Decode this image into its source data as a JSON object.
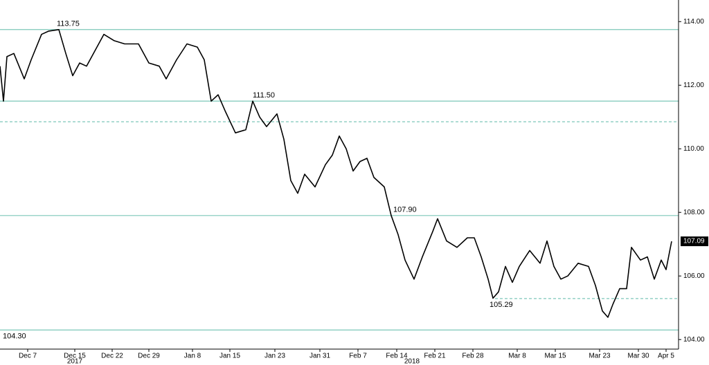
{
  "chart_data": {
    "type": "line",
    "x": [
      0,
      5,
      10,
      20,
      35,
      45,
      60,
      70,
      85,
      95,
      105,
      115,
      125,
      140,
      150,
      165,
      180,
      200,
      215,
      230,
      240,
      255,
      270,
      285,
      295,
      305,
      315,
      325,
      340,
      355,
      365,
      375,
      385,
      400,
      410,
      420,
      430,
      440,
      455,
      470,
      480,
      490,
      500,
      510,
      520,
      530,
      540,
      555,
      565,
      575,
      585,
      598,
      610,
      625,
      632,
      645,
      660,
      675,
      685,
      695,
      705,
      712,
      720,
      730,
      740,
      750,
      765,
      780,
      790,
      800,
      810,
      820,
      835,
      850,
      860,
      870,
      878,
      885,
      895,
      905,
      912,
      925,
      935,
      945,
      955,
      962,
      970
    ],
    "values": [
      112.6,
      111.5,
      112.9,
      113.0,
      112.2,
      112.8,
      113.6,
      113.7,
      113.75,
      113.0,
      112.3,
      112.7,
      112.6,
      113.2,
      113.6,
      113.4,
      113.3,
      113.3,
      112.7,
      112.6,
      112.2,
      112.8,
      113.3,
      113.2,
      112.8,
      111.5,
      111.7,
      111.2,
      110.5,
      110.6,
      111.5,
      111.0,
      110.7,
      111.1,
      110.3,
      109.0,
      108.6,
      109.2,
      108.8,
      109.5,
      109.8,
      110.4,
      110.0,
      109.3,
      109.6,
      109.7,
      109.1,
      108.8,
      107.9,
      107.3,
      106.5,
      105.9,
      106.6,
      107.4,
      107.8,
      107.1,
      106.9,
      107.2,
      107.2,
      106.6,
      105.9,
      105.3,
      105.5,
      106.3,
      105.8,
      106.3,
      106.8,
      106.4,
      107.1,
      106.3,
      105.9,
      106.0,
      106.4,
      106.3,
      105.7,
      104.9,
      104.7,
      105.1,
      105.6,
      105.6,
      106.9,
      106.5,
      106.6,
      105.9,
      106.5,
      106.2,
      107.09
    ],
    "color": "#000000",
    "xlim": [
      0,
      980
    ],
    "ylim": [
      103.7,
      114.68
    ],
    "yticks": [
      {
        "value": 104,
        "label": "104.00"
      },
      {
        "value": 106,
        "label": "106.00"
      },
      {
        "value": 108,
        "label": "108.00"
      },
      {
        "value": 110,
        "label": "110.00"
      },
      {
        "value": 112,
        "label": "112.00"
      },
      {
        "value": 114,
        "label": "114.00"
      }
    ],
    "xticks": [
      {
        "value": 40,
        "label": "Dec 7"
      },
      {
        "value": 108,
        "label": "Dec 15"
      },
      {
        "value": 162,
        "label": "Dec 22"
      },
      {
        "value": 215,
        "label": "Dec 29"
      },
      {
        "value": 278,
        "label": "Jan 8"
      },
      {
        "value": 332,
        "label": "Jan 15"
      },
      {
        "value": 397,
        "label": "Jan 23"
      },
      {
        "value": 462,
        "label": "Jan 31"
      },
      {
        "value": 517,
        "label": "Feb 7"
      },
      {
        "value": 573,
        "label": "Feb 14"
      },
      {
        "value": 628,
        "label": "Feb 21"
      },
      {
        "value": 683,
        "label": "Feb 28"
      },
      {
        "value": 747,
        "label": "Mar 8"
      },
      {
        "value": 802,
        "label": "Mar 15"
      },
      {
        "value": 866,
        "label": "Mar 23"
      },
      {
        "value": 922,
        "label": "Mar 30"
      },
      {
        "value": 962,
        "label": "Apr 5"
      }
    ],
    "years": [
      {
        "value": 108,
        "label": "2017"
      },
      {
        "value": 595,
        "label": "2018"
      }
    ],
    "levels": [
      {
        "value": 113.75,
        "label": "113.75",
        "style": "solid",
        "x": 82
      },
      {
        "value": 111.5,
        "label": "111.50",
        "style": "solid",
        "x": 365
      },
      {
        "value": 110.85,
        "style": "dashed",
        "x": 0
      },
      {
        "value": 107.9,
        "label": "107.90",
        "style": "solid",
        "x": 568
      },
      {
        "value": 105.29,
        "label": "105.29",
        "style": "dashed",
        "x": 715
      },
      {
        "value": 104.3,
        "label": "104.30",
        "style": "solid",
        "x": 4
      }
    ],
    "level_color": "#7cc7b8"
  }
}
